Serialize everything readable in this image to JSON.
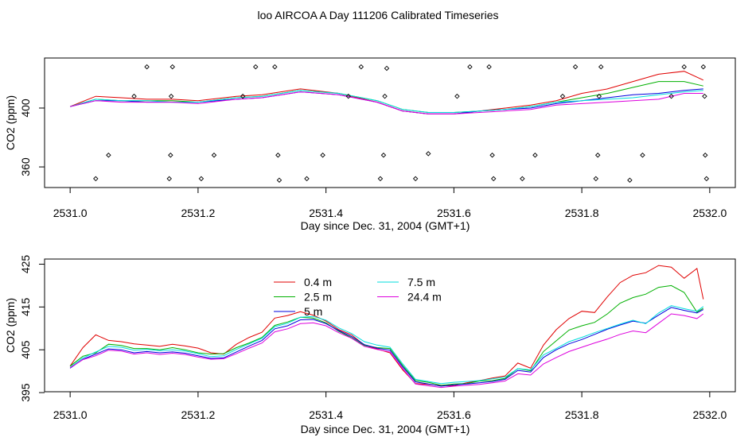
{
  "title": "loo AIRCOA A  Day 111206  Calibrated Timeseries",
  "colors": {
    "0.4 m": "#e00000",
    "2.5 m": "#00b000",
    "5 m": "#0000dd",
    "7.5 m": "#00dede",
    "24.4 m": "#dd00dd"
  },
  "chart_data": [
    {
      "type": "line",
      "title": "",
      "xlabel": "Day since Dec. 31, 2004 (GMT+1)",
      "ylabel": "CO2 (ppm)",
      "xlim": [
        2530.96,
        2532.04
      ],
      "ylim": [
        346,
        434
      ],
      "x_ticks": [
        2531.0,
        2531.2,
        2531.4,
        2531.6,
        2531.8,
        2532.0
      ],
      "x_tick_labels": [
        "2531.0",
        "2531.2",
        "2531.4",
        "2531.6",
        "2531.8",
        "2532.0"
      ],
      "y_ticks": [
        360,
        400
      ],
      "y_tick_labels": [
        "360",
        "400"
      ],
      "x": [
        2531.0,
        2531.04,
        2531.08,
        2531.12,
        2531.16,
        2531.2,
        2531.26,
        2531.3,
        2531.36,
        2531.42,
        2531.48,
        2531.52,
        2531.56,
        2531.6,
        2531.64,
        2531.68,
        2531.72,
        2531.76,
        2531.8,
        2531.84,
        2531.88,
        2531.92,
        2531.96,
        2531.99
      ],
      "series": [
        {
          "name": "0.4 m",
          "values": [
            401,
            408,
            407,
            406,
            406,
            405,
            408,
            409,
            413,
            410,
            404,
            398,
            396,
            396,
            398,
            400,
            402,
            405,
            410,
            413,
            418,
            423,
            425,
            419
          ]
        },
        {
          "name": "2.5 m",
          "values": [
            401,
            406,
            405,
            405,
            405,
            404,
            407,
            408,
            412,
            410,
            405,
            399,
            397,
            397,
            398,
            399,
            401,
            404,
            407,
            410,
            414,
            418,
            418,
            415
          ]
        },
        {
          "name": "5 m",
          "values": [
            401,
            405,
            405,
            404,
            404,
            404,
            406,
            407,
            411,
            409,
            404,
            398,
            396,
            396,
            398,
            399,
            400,
            403,
            405,
            407,
            409,
            410,
            412,
            413
          ]
        },
        {
          "name": "7.5 m",
          "values": [
            401,
            406,
            405,
            405,
            404,
            404,
            407,
            408,
            412,
            410,
            405,
            399,
            397,
            397,
            398,
            399,
            401,
            404,
            405,
            406,
            407,
            409,
            411,
            412
          ]
        },
        {
          "name": "24.4 m",
          "values": [
            401,
            405,
            404,
            404,
            404,
            403,
            406,
            407,
            411,
            409,
            404,
            398,
            396,
            396,
            397,
            398,
            399,
            402,
            403,
            404,
            405,
            406,
            410,
            410
          ]
        }
      ],
      "points": [
        {
          "x": 2531.04,
          "y": 352
        },
        {
          "x": 2531.06,
          "y": 368
        },
        {
          "x": 2531.1,
          "y": 408
        },
        {
          "x": 2531.12,
          "y": 428
        },
        {
          "x": 2531.155,
          "y": 352
        },
        {
          "x": 2531.157,
          "y": 368
        },
        {
          "x": 2531.158,
          "y": 408
        },
        {
          "x": 2531.16,
          "y": 428
        },
        {
          "x": 2531.205,
          "y": 352
        },
        {
          "x": 2531.225,
          "y": 368
        },
        {
          "x": 2531.27,
          "y": 408
        },
        {
          "x": 2531.29,
          "y": 428
        },
        {
          "x": 2531.32,
          "y": 428
        },
        {
          "x": 2531.325,
          "y": 368
        },
        {
          "x": 2531.327,
          "y": 351
        },
        {
          "x": 2531.37,
          "y": 352
        },
        {
          "x": 2531.395,
          "y": 368
        },
        {
          "x": 2531.435,
          "y": 408
        },
        {
          "x": 2531.455,
          "y": 428
        },
        {
          "x": 2531.485,
          "y": 352
        },
        {
          "x": 2531.49,
          "y": 368
        },
        {
          "x": 2531.492,
          "y": 408
        },
        {
          "x": 2531.495,
          "y": 427
        },
        {
          "x": 2531.54,
          "y": 352
        },
        {
          "x": 2531.56,
          "y": 369
        },
        {
          "x": 2531.605,
          "y": 408
        },
        {
          "x": 2531.625,
          "y": 428
        },
        {
          "x": 2531.655,
          "y": 428
        },
        {
          "x": 2531.66,
          "y": 368
        },
        {
          "x": 2531.662,
          "y": 352
        },
        {
          "x": 2531.707,
          "y": 352
        },
        {
          "x": 2531.727,
          "y": 368
        },
        {
          "x": 2531.77,
          "y": 408
        },
        {
          "x": 2531.79,
          "y": 428
        },
        {
          "x": 2531.822,
          "y": 352
        },
        {
          "x": 2531.825,
          "y": 368
        },
        {
          "x": 2531.827,
          "y": 408
        },
        {
          "x": 2531.83,
          "y": 428
        },
        {
          "x": 2531.875,
          "y": 351
        },
        {
          "x": 2531.895,
          "y": 368
        },
        {
          "x": 2531.94,
          "y": 408
        },
        {
          "x": 2531.96,
          "y": 428
        },
        {
          "x": 2531.99,
          "y": 428
        },
        {
          "x": 2531.992,
          "y": 408
        },
        {
          "x": 2531.993,
          "y": 368
        },
        {
          "x": 2531.995,
          "y": 352
        }
      ],
      "grid": false
    },
    {
      "type": "line",
      "title": "",
      "xlabel": "Day since Dec. 31, 2004 (GMT+1)",
      "ylabel": "CO2 (ppm)",
      "xlim": [
        2530.96,
        2532.04
      ],
      "ylim": [
        395.2,
        426.2
      ],
      "x_ticks": [
        2531.0,
        2531.2,
        2531.4,
        2531.6,
        2531.8,
        2532.0
      ],
      "x_tick_labels": [
        "2531.0",
        "2531.2",
        "2531.4",
        "2531.6",
        "2531.8",
        "2532.0"
      ],
      "y_ticks": [
        395,
        405,
        415,
        425
      ],
      "y_tick_labels": [
        "395",
        "405",
        "415",
        "425"
      ],
      "legend": {
        "placement": "top-center",
        "entries": [
          "0.4 m",
          "2.5 m",
          "5 m",
          "7.5 m",
          "24.4 m"
        ]
      },
      "x": [
        2531.0,
        2531.02,
        2531.04,
        2531.06,
        2531.08,
        2531.1,
        2531.12,
        2531.14,
        2531.16,
        2531.18,
        2531.2,
        2531.22,
        2531.24,
        2531.26,
        2531.28,
        2531.3,
        2531.32,
        2531.34,
        2531.36,
        2531.38,
        2531.4,
        2531.42,
        2531.44,
        2531.46,
        2531.48,
        2531.5,
        2531.52,
        2531.54,
        2531.56,
        2531.58,
        2531.6,
        2531.62,
        2531.64,
        2531.66,
        2531.68,
        2531.7,
        2531.72,
        2531.74,
        2531.76,
        2531.78,
        2531.8,
        2531.82,
        2531.84,
        2531.86,
        2531.88,
        2531.9,
        2531.92,
        2531.94,
        2531.96,
        2531.98,
        2531.99
      ],
      "series": [
        {
          "name": "0.4 m",
          "values": [
            401.2,
            405.5,
            408.5,
            407.2,
            406.9,
            406.4,
            406.1,
            405.8,
            406.3,
            405.9,
            405.4,
            404.3,
            404.0,
            406.3,
            407.9,
            409.1,
            412.4,
            413.0,
            413.9,
            413.1,
            411.7,
            409.7,
            408.5,
            406.1,
            405.2,
            404.3,
            400.3,
            397.1,
            396.9,
            396.6,
            396.6,
            397.3,
            397.8,
            398.4,
            398.9,
            401.9,
            400.7,
            406.1,
            409.7,
            412.3,
            414.0,
            413.7,
            417.4,
            420.7,
            422.4,
            423.0,
            424.7,
            424.3,
            421.7,
            424.0,
            416.8
          ]
        },
        {
          "name": "2.5 m",
          "values": [
            401.2,
            403.5,
            404.3,
            406.3,
            406.0,
            405.3,
            405.3,
            405.0,
            405.5,
            405.0,
            404.3,
            404.0,
            404.1,
            405.5,
            406.6,
            407.9,
            410.7,
            411.5,
            412.6,
            412.4,
            411.3,
            409.3,
            407.8,
            406.0,
            405.5,
            405.3,
            401.3,
            397.8,
            397.4,
            396.7,
            397.0,
            397.1,
            397.7,
            397.8,
            398.3,
            400.6,
            400.1,
            404.6,
            407.1,
            409.6,
            410.6,
            411.4,
            413.4,
            415.9,
            417.2,
            418.0,
            419.6,
            420.0,
            418.4,
            413.8,
            414.7
          ]
        },
        {
          "name": "5 m",
          "values": [
            400.7,
            402.8,
            404.0,
            405.2,
            405.0,
            404.3,
            404.6,
            404.3,
            404.5,
            404.2,
            403.6,
            403.0,
            403.1,
            404.5,
            405.9,
            407.2,
            409.9,
            410.6,
            412.0,
            412.1,
            411.1,
            409.5,
            408.1,
            406.2,
            405.4,
            404.9,
            401.0,
            397.5,
            397.0,
            396.5,
            396.8,
            397.0,
            397.3,
            397.6,
            398.1,
            400.2,
            399.8,
            403.2,
            405.0,
            406.4,
            407.4,
            408.6,
            409.8,
            410.8,
            411.7,
            411.2,
            413.1,
            414.9,
            414.2,
            413.6,
            414.4
          ]
        },
        {
          "name": "7.5 m",
          "values": [
            400.9,
            403.1,
            404.5,
            405.8,
            405.6,
            404.9,
            405.1,
            404.8,
            405.0,
            404.7,
            404.1,
            403.4,
            403.6,
            405.1,
            406.4,
            407.7,
            410.4,
            411.2,
            412.6,
            412.8,
            411.9,
            410.1,
            408.8,
            406.9,
            406.1,
            405.6,
            401.7,
            398.1,
            397.6,
            397.1,
            397.4,
            397.6,
            397.8,
            398.2,
            398.6,
            400.6,
            400.3,
            403.8,
            405.3,
            406.9,
            407.9,
            409.0,
            410.0,
            411.0,
            411.9,
            411.1,
            413.6,
            415.3,
            414.6,
            414.0,
            415.1
          ]
        },
        {
          "name": "24.4 m",
          "values": [
            400.8,
            402.7,
            403.6,
            404.9,
            404.7,
            404.0,
            404.3,
            403.9,
            404.2,
            403.9,
            403.3,
            402.8,
            402.9,
            404.1,
            405.4,
            406.6,
            409.2,
            409.9,
            411.1,
            411.3,
            410.6,
            409.0,
            407.7,
            405.8,
            405.1,
            404.5,
            400.6,
            397.0,
            396.6,
            396.2,
            396.5,
            396.7,
            396.9,
            397.3,
            397.7,
            399.4,
            399.1,
            401.7,
            403.2,
            404.6,
            405.6,
            406.6,
            407.5,
            408.6,
            409.4,
            409.0,
            411.2,
            413.4,
            413.0,
            412.3,
            413.4
          ]
        }
      ],
      "grid": false
    }
  ]
}
